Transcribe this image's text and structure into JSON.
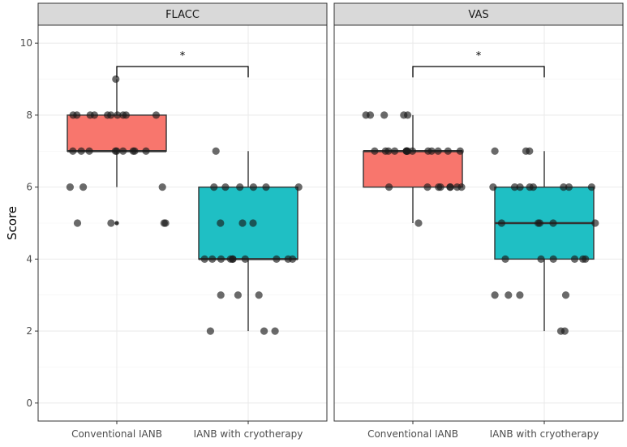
{
  "chart_data": {
    "type": "box",
    "ylabel": "Score",
    "ylim": [
      -0.5,
      10.5
    ],
    "yticks": [
      0,
      2,
      4,
      6,
      8,
      10
    ],
    "categories": [
      "Conventional IANB",
      "IANB with cryotherapy"
    ],
    "colors": {
      "Conventional IANB": "#F8766D",
      "IANB with cryotherapy": "#1FBFC4"
    },
    "panels": [
      {
        "title": "FLACC",
        "significance": "*",
        "boxes": [
          {
            "group": "Conventional IANB",
            "q1": 7,
            "median": 7,
            "q3": 8,
            "whisker_low": 6,
            "whisker_high": 9,
            "outliers": [
              5
            ]
          },
          {
            "group": "IANB with cryotherapy",
            "q1": 4,
            "median": 4,
            "q3": 6,
            "whisker_low": 2,
            "whisker_high": 7,
            "outliers": []
          }
        ],
        "points": [
          {
            "group": "Conventional IANB",
            "values": [
              9,
              8,
              8,
              8,
              8,
              8,
              8,
              8,
              8,
              8,
              8,
              7,
              7,
              7,
              7,
              7,
              7,
              7,
              7,
              7,
              6,
              6,
              6,
              5,
              5,
              5,
              5
            ]
          },
          {
            "group": "IANB with cryotherapy",
            "values": [
              7,
              6,
              6,
              6,
              6,
              6,
              6,
              5,
              5,
              5,
              4,
              4,
              4,
              4,
              4,
              4,
              4,
              4,
              4,
              4,
              3,
              3,
              3,
              2,
              2,
              2
            ]
          }
        ]
      },
      {
        "title": "VAS",
        "significance": "*",
        "boxes": [
          {
            "group": "Conventional IANB",
            "q1": 6,
            "median": 7,
            "q3": 7,
            "whisker_low": 5,
            "whisker_high": 8,
            "outliers": []
          },
          {
            "group": "IANB with cryotherapy",
            "q1": 4,
            "median": 5,
            "q3": 6,
            "whisker_low": 2,
            "whisker_high": 7,
            "outliers": []
          }
        ],
        "points": [
          {
            "group": "Conventional IANB",
            "values": [
              8,
              8,
              8,
              8,
              8,
              7,
              7,
              7,
              7,
              7,
              7,
              7,
              7,
              7,
              7,
              7,
              7,
              7,
              7,
              6,
              6,
              6,
              6,
              6,
              6,
              6,
              6,
              5
            ]
          },
          {
            "group": "IANB with cryotherapy",
            "values": [
              7,
              7,
              7,
              6,
              6,
              6,
              6,
              6,
              6,
              6,
              6,
              5,
              5,
              5,
              5,
              5,
              4,
              4,
              4,
              4,
              4,
              4,
              3,
              3,
              3,
              3,
              2,
              2
            ]
          }
        ]
      }
    ]
  }
}
